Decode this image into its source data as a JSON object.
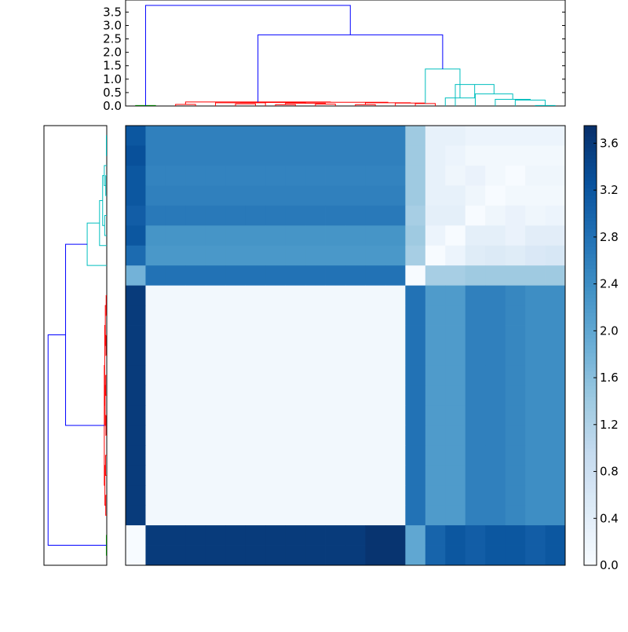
{
  "chart_data": [
    {
      "type": "dendrogram",
      "orientation": "top",
      "ylim": [
        0,
        3.95
      ],
      "ytick_labels": [
        "0.0",
        "0.5",
        "1.0",
        "1.5",
        "2.0",
        "2.5",
        "3.0",
        "3.5"
      ],
      "ytick_values": [
        0,
        0.5,
        1.0,
        1.5,
        2.0,
        2.5,
        3.0,
        3.5
      ],
      "n_leaves": 22,
      "links": [
        {
          "a": 1,
          "b": 2,
          "h": 0.02,
          "color": "#008000"
        },
        {
          "a": 3,
          "b": 4,
          "h": 0.06,
          "color": "#ff0000"
        },
        {
          "a": 6,
          "b": 7,
          "h": 0.08,
          "color": "#ff0000"
        },
        {
          "a": 5,
          "b": 7.5,
          "h": 0.12,
          "color": "#ff0000"
        },
        {
          "a": 8,
          "b": 9,
          "h": 0.05,
          "color": "#ff0000"
        },
        {
          "a": 10,
          "b": 11,
          "h": 0.07,
          "color": "#ff0000"
        },
        {
          "a": 8.5,
          "b": 10.5,
          "h": 0.1,
          "color": "#ff0000"
        },
        {
          "a": 6.25,
          "b": 9.5,
          "h": 0.13,
          "color": "#ff0000"
        },
        {
          "a": 12,
          "b": 13,
          "h": 0.05,
          "color": "#ff0000"
        },
        {
          "a": 15,
          "b": 16,
          "h": 0.09,
          "color": "#ff0000"
        },
        {
          "a": 14,
          "b": 15.5,
          "h": 0.11,
          "color": "#ff0000"
        },
        {
          "a": 12.5,
          "b": 14.75,
          "h": 0.12,
          "color": "#ff0000"
        },
        {
          "a": 7.875,
          "b": 13.625,
          "h": 0.14,
          "color": "#ff0000"
        },
        {
          "a": 3.5,
          "b": 10.75,
          "h": 0.15,
          "color": "#ff0000"
        },
        {
          "a": 21,
          "b": 22,
          "h": 0.02,
          "color": "#00bfbf"
        },
        {
          "a": 20,
          "b": 21.5,
          "h": 0.22,
          "color": "#00bfbf"
        },
        {
          "a": 19,
          "b": 20.75,
          "h": 0.25,
          "color": "#00bfbf"
        },
        {
          "a": 18,
          "b": 19.875,
          "h": 0.45,
          "color": "#00bfbf"
        },
        {
          "a": 17,
          "b": 18.9375,
          "h": 0.8,
          "color": "#00bfbf"
        },
        {
          "a": 16.5,
          "b": 17.96875,
          "h": 0.3,
          "color": "#00bfbf"
        },
        {
          "a": 15.5,
          "b": 17.234375,
          "h": 1.38,
          "color": "#00bfbf"
        },
        {
          "a": 7.125,
          "b": 16.3671875,
          "h": 2.65,
          "color": "#0000ff"
        },
        {
          "a": 1.5,
          "b": 11.74609375,
          "h": 3.75,
          "color": "#0000ff"
        }
      ]
    },
    {
      "type": "dendrogram",
      "orientation": "left",
      "n_leaves": 22,
      "links": [
        {
          "a": 1,
          "b": 2,
          "h": 0.02,
          "color": "#00bfbf"
        },
        {
          "a": 3,
          "b": 4,
          "h": 0.05,
          "color": "#00bfbf"
        },
        {
          "a": 2.5,
          "b": 3.5,
          "h": 0.12,
          "color": "#00bfbf"
        },
        {
          "a": 5,
          "b": 6,
          "h": 0.1,
          "color": "#00bfbf"
        },
        {
          "a": 3,
          "b": 5.5,
          "h": 0.2,
          "color": "#00bfbf"
        },
        {
          "a": 4.25,
          "b": 6.5,
          "h": 0.35,
          "color": "#00bfbf"
        },
        {
          "a": 5.375,
          "b": 7.5,
          "h": 0.95,
          "color": "#00bfbf"
        },
        {
          "a": 9,
          "b": 10,
          "h": 0.03,
          "color": "#ff0000"
        },
        {
          "a": 11,
          "b": 12,
          "h": 0.04,
          "color": "#ff0000"
        },
        {
          "a": 13,
          "b": 14,
          "h": 0.05,
          "color": "#ff0000"
        },
        {
          "a": 15,
          "b": 16,
          "h": 0.04,
          "color": "#ff0000"
        },
        {
          "a": 17,
          "b": 18,
          "h": 0.06,
          "color": "#ff0000"
        },
        {
          "a": 19,
          "b": 20,
          "h": 0.05,
          "color": "#ff0000"
        },
        {
          "a": 9.5,
          "b": 11.5,
          "h": 0.07,
          "color": "#ff0000"
        },
        {
          "a": 13.5,
          "b": 15.5,
          "h": 0.08,
          "color": "#ff0000"
        },
        {
          "a": 17.5,
          "b": 19.5,
          "h": 0.09,
          "color": "#ff0000"
        },
        {
          "a": 10.5,
          "b": 14.5,
          "h": 0.1,
          "color": "#ff0000"
        },
        {
          "a": 12.5,
          "b": 18.5,
          "h": 0.12,
          "color": "#ff0000"
        },
        {
          "a": 21,
          "b": 22,
          "h": 0.02,
          "color": "#008000"
        },
        {
          "a": 6.4375,
          "b": 15.5,
          "h": 2.0,
          "color": "#0000ff"
        },
        {
          "a": 10.96875,
          "b": 21.5,
          "h": 2.85,
          "color": "#0000ff"
        }
      ]
    },
    {
      "type": "heatmap",
      "colormap": "Blues",
      "vmin": 0,
      "vmax": 3.75,
      "colorbar_tick_labels": [
        "0.0",
        "0.4",
        "0.8",
        "1.2",
        "1.6",
        "2.0",
        "2.4",
        "2.8",
        "3.2",
        "3.6"
      ],
      "colorbar_tick_values": [
        0,
        0.4,
        0.8,
        1.2,
        1.6,
        2.0,
        2.4,
        2.8,
        3.2,
        3.6
      ],
      "row_groups": [
        {
          "rows": 7,
          "values": [
            3.2,
            2.6,
            2.6,
            2.6,
            2.6,
            2.6,
            2.6,
            2.6,
            2.6,
            2.6,
            2.6,
            2.6,
            2.6,
            2.6,
            1.4,
            0.3,
            0.3,
            0.2,
            0.2,
            0.2,
            0.2,
            0.2
          ]
        },
        {
          "rows": 1,
          "values": [
            1.8,
            2.8,
            2.8,
            2.8,
            2.8,
            2.8,
            2.8,
            2.8,
            2.8,
            2.8,
            2.8,
            2.8,
            2.8,
            2.8,
            0.0,
            1.3,
            1.3,
            1.4,
            1.4,
            1.4,
            1.4,
            1.4
          ]
        },
        {
          "rows": 12,
          "values": [
            3.6,
            0.1,
            0.1,
            0.1,
            0.1,
            0.1,
            0.1,
            0.1,
            0.1,
            0.1,
            0.1,
            0.1,
            0.1,
            0.1,
            2.8,
            2.2,
            2.2,
            2.6,
            2.6,
            2.5,
            2.4,
            2.4
          ]
        },
        {
          "rows": 2,
          "values": [
            0.0,
            3.6,
            3.6,
            3.6,
            3.6,
            3.6,
            3.6,
            3.6,
            3.6,
            3.6,
            3.6,
            3.6,
            3.7,
            3.7,
            2.0,
            3.0,
            3.2,
            3.1,
            3.2,
            3.2,
            3.1,
            3.2
          ]
        }
      ],
      "row_variation": [
        [
          3.3,
          2.6,
          2.6,
          2.6,
          2.6,
          2.6,
          2.6,
          2.6,
          2.6,
          2.6,
          2.6,
          2.6,
          2.6,
          2.6,
          1.4,
          0.3,
          0.2,
          0.1,
          0.1,
          0.1,
          0.1,
          0.1
        ],
        [
          3.2,
          2.55,
          2.55,
          2.55,
          2.55,
          2.55,
          2.55,
          2.55,
          2.55,
          2.55,
          2.55,
          2.55,
          2.55,
          2.55,
          1.4,
          0.3,
          0.15,
          0.25,
          0.1,
          0.0,
          0.15,
          0.15
        ],
        [
          3.2,
          2.6,
          2.6,
          2.6,
          2.6,
          2.6,
          2.6,
          2.6,
          2.6,
          2.6,
          2.6,
          2.6,
          2.6,
          2.6,
          1.4,
          0.3,
          0.3,
          0.15,
          0.0,
          0.1,
          0.1,
          0.1
        ],
        [
          3.1,
          2.7,
          2.7,
          2.7,
          2.7,
          2.7,
          2.7,
          2.7,
          2.7,
          2.7,
          2.7,
          2.7,
          2.7,
          2.7,
          1.3,
          0.35,
          0.35,
          0.0,
          0.15,
          0.25,
          0.15,
          0.2
        ],
        [
          3.2,
          2.3,
          2.3,
          2.3,
          2.3,
          2.3,
          2.3,
          2.3,
          2.3,
          2.3,
          2.3,
          2.3,
          2.3,
          2.3,
          1.4,
          0.2,
          0.0,
          0.35,
          0.35,
          0.25,
          0.4,
          0.4
        ],
        [
          2.9,
          2.25,
          2.25,
          2.25,
          2.25,
          2.25,
          2.25,
          2.25,
          2.25,
          2.25,
          2.25,
          2.25,
          2.25,
          2.25,
          1.3,
          0.0,
          0.2,
          0.45,
          0.5,
          0.45,
          0.55,
          0.6
        ]
      ]
    }
  ]
}
